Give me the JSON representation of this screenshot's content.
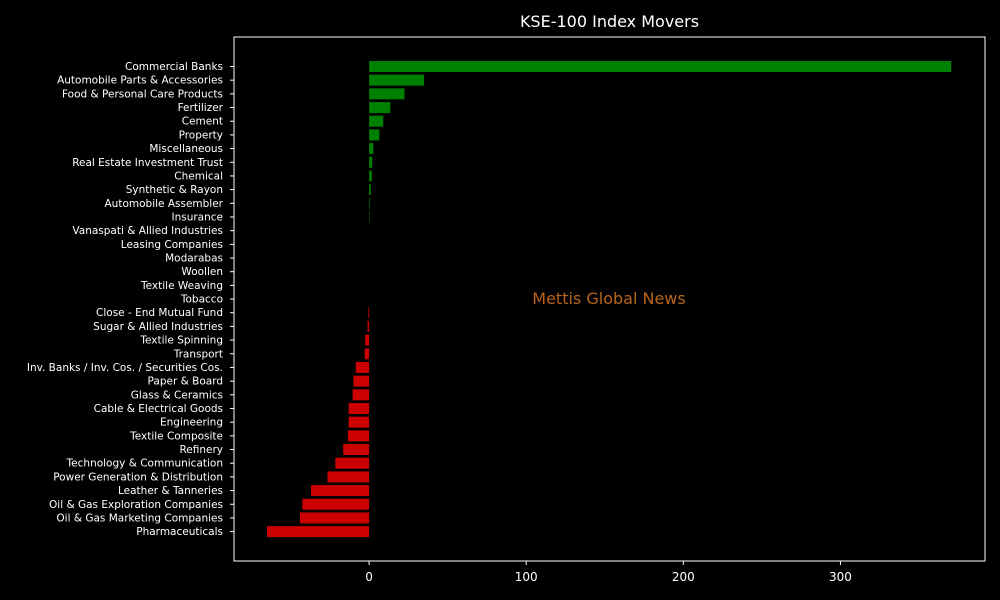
{
  "chart_data": {
    "type": "bar",
    "orientation": "horizontal",
    "title": "KSE-100 Index Movers",
    "watermark": "Mettis Global News",
    "xlabel": "",
    "ylabel": "",
    "xlim": [
      -86,
      392
    ],
    "xticks": [
      0,
      100,
      200,
      300
    ],
    "colors": {
      "positive": "#008000",
      "negative": "#cc0000",
      "watermark": "#b8651b",
      "text": "#ffffff",
      "background": "#000000"
    },
    "categories": [
      "Commercial Banks",
      "Automobile Parts & Accessories",
      "Food & Personal Care Products",
      "Fertilizer",
      "Cement",
      "Property",
      "Miscellaneous",
      "Real Estate Investment Trust",
      "Chemical",
      "Synthetic & Rayon",
      "Automobile Assembler",
      "Insurance",
      "Vanaspati & Allied Industries",
      "Leasing Companies",
      "Modarabas",
      "Woollen",
      "Textile Weaving",
      "Tobacco",
      "Close - End Mutual Fund",
      "Sugar & Allied Industries",
      "Textile Spinning",
      "Transport",
      "Inv. Banks / Inv. Cos. / Securities Cos.",
      "Paper & Board",
      "Glass & Ceramics",
      "Cable & Electrical Goods",
      "Engineering",
      "Textile Composite",
      "Refinery",
      "Technology & Communication",
      "Power Generation & Distribution",
      "Leather & Tanneries",
      "Oil & Gas Exploration Companies",
      "Oil & Gas Marketing Companies",
      "Pharmaceuticals"
    ],
    "values": [
      370.5,
      35,
      22.5,
      13.5,
      9,
      6.5,
      2.7,
      2,
      1.7,
      1.1,
      0.4,
      0.3,
      0,
      0,
      0,
      0,
      0,
      0,
      -0.5,
      -1,
      -2.5,
      -2.8,
      -8.5,
      -10,
      -10.5,
      -13,
      -13,
      -13.5,
      -16.5,
      -21.5,
      -26.5,
      -37,
      -42.5,
      -44,
      -65
    ]
  }
}
